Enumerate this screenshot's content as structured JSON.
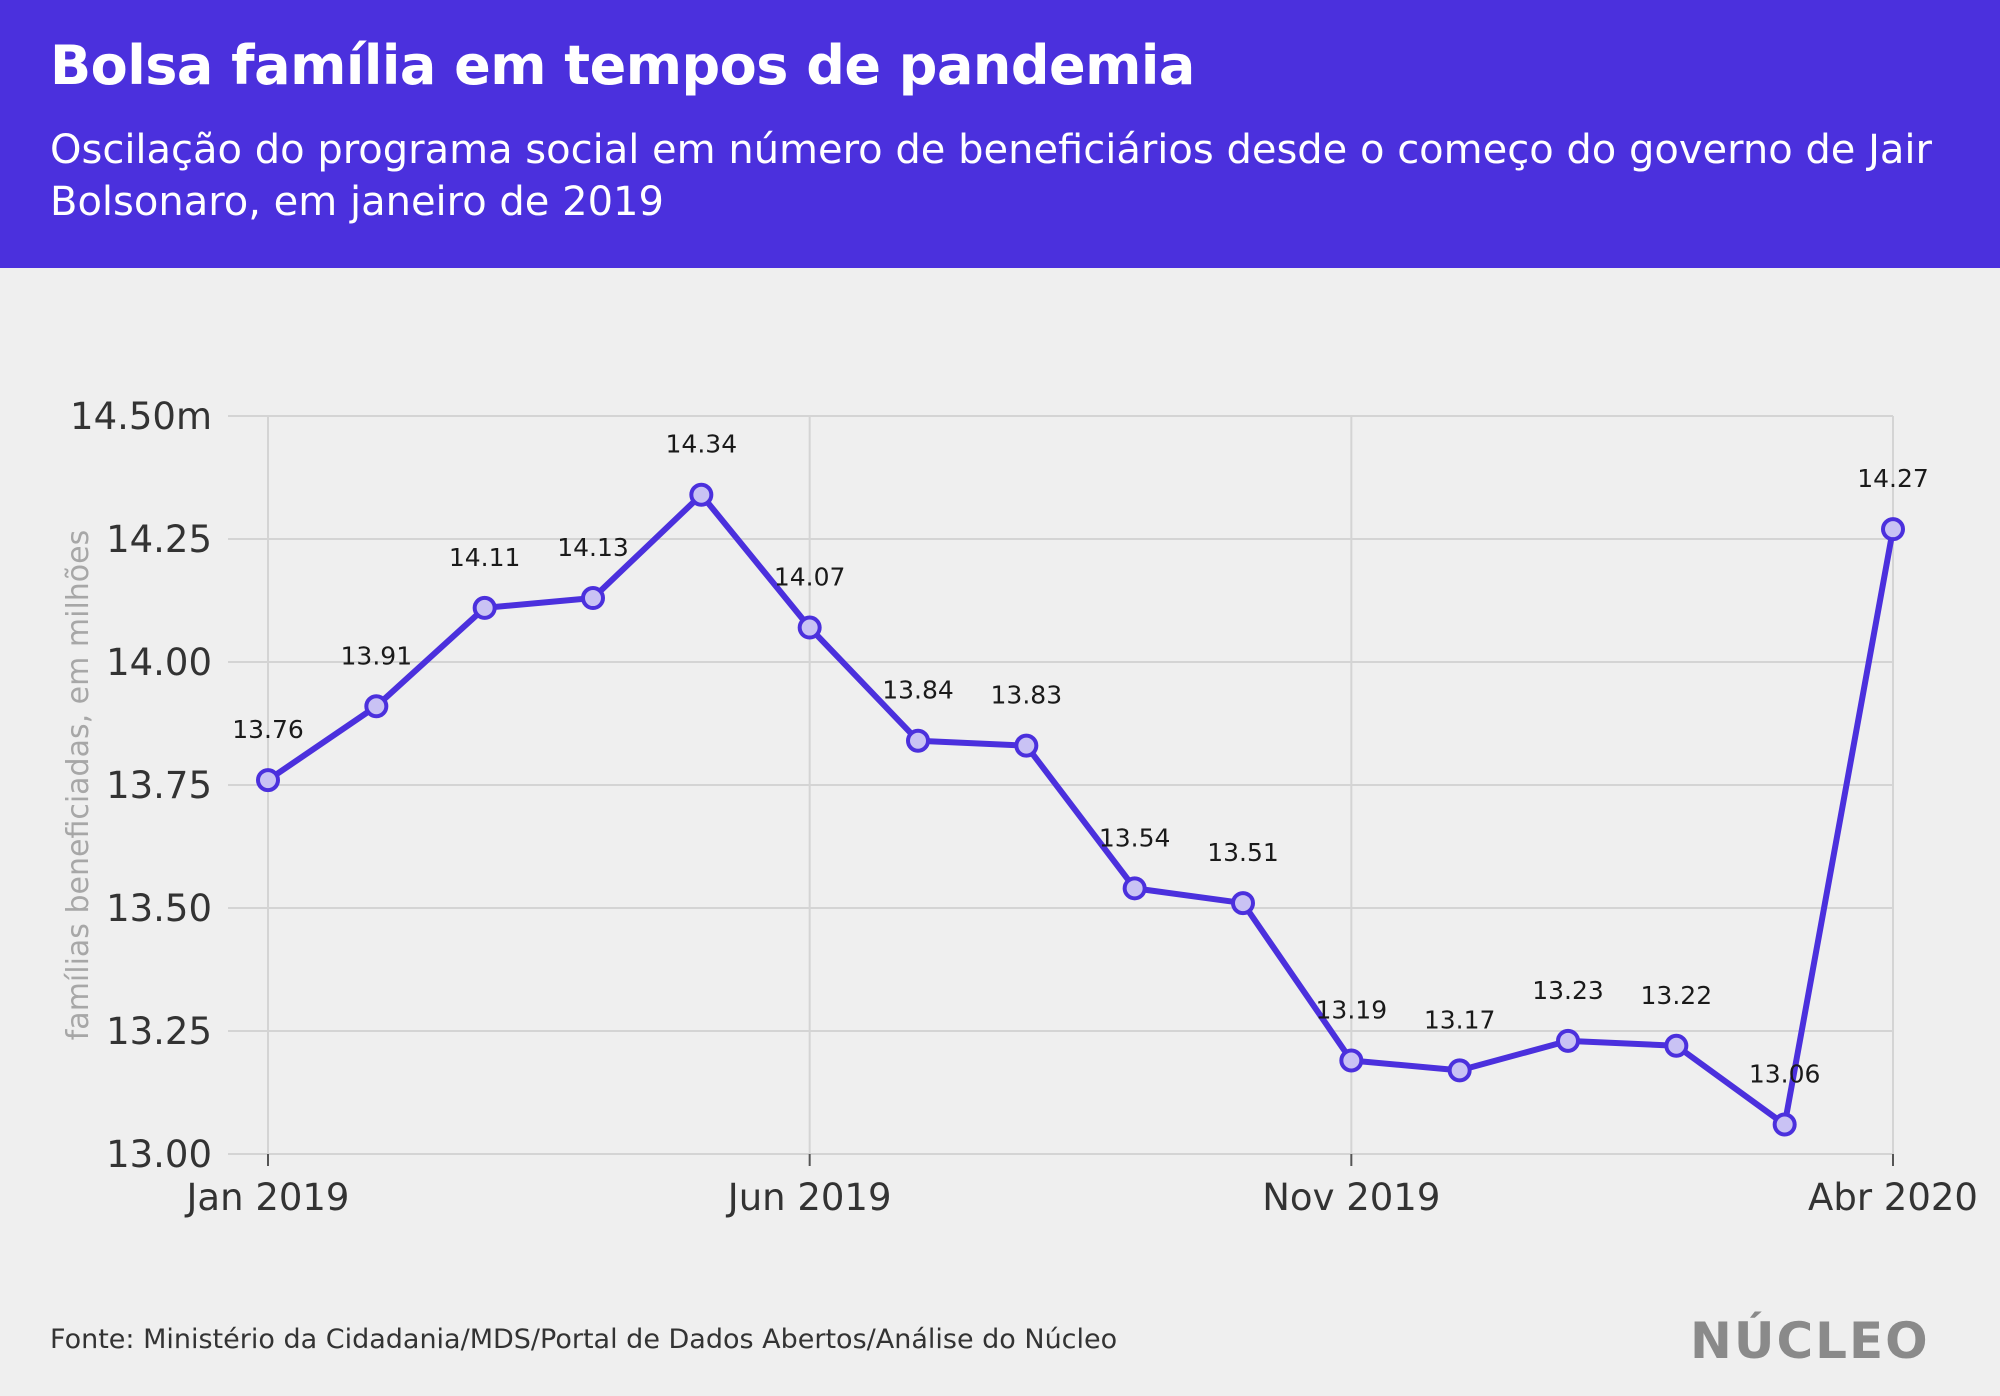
{
  "header": {
    "title": "Bolsa família em tempos de pandemia",
    "subtitle": "Oscilação do programa social em número de beneficiários desde o começo do governo de Jair Bolsonaro, em janeiro de 2019"
  },
  "footer": {
    "source": "Fonte: Ministério da Cidadania/MDS/Portal de Dados Abertos/Análise do Núcleo",
    "logo": "NÚCLEO"
  },
  "colors": {
    "accent": "#4b30dd",
    "marker_fill": "#c9c2f4",
    "background": "#efefef",
    "grid": "#d4d4d4"
  },
  "chart_data": {
    "type": "line",
    "title": "Bolsa família em tempos de pandemia",
    "xlabel": "",
    "ylabel": "famílias beneficiadas, em milhões",
    "ylim": [
      13.0,
      14.5
    ],
    "yticks": [
      13.0,
      13.25,
      13.5,
      13.75,
      14.0,
      14.25,
      14.5
    ],
    "ytick_labels": [
      "13.00",
      "13.25",
      "13.50",
      "13.75",
      "14.00",
      "14.25",
      "14.50m"
    ],
    "xticks": [
      0,
      5,
      10,
      15
    ],
    "xtick_labels": [
      "Jan 2019",
      "Jun 2019",
      "Nov 2019",
      "Abr 2020"
    ],
    "grid": true,
    "series": [
      {
        "name": "famílias beneficiadas",
        "x": [
          0,
          1,
          2,
          3,
          4,
          5,
          6,
          7,
          8,
          9,
          10,
          11,
          12,
          13,
          14,
          15
        ],
        "values": [
          13.76,
          13.91,
          14.11,
          14.13,
          14.34,
          14.07,
          13.84,
          13.83,
          13.54,
          13.51,
          13.19,
          13.17,
          13.23,
          13.22,
          13.06,
          14.27
        ],
        "labels": [
          "13.76",
          "13.91",
          "14.11",
          "14.13",
          "14.34",
          "14.07",
          "13.84",
          "13.83",
          "13.54",
          "13.51",
          "13.19",
          "13.17",
          "13.23",
          "13.22",
          "13.06",
          "14.27"
        ]
      }
    ]
  }
}
